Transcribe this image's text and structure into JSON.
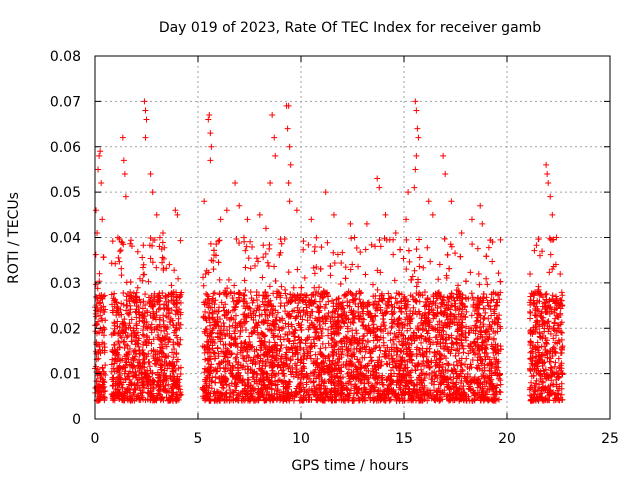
{
  "chart_data": {
    "type": "scatter",
    "title": "Day 019 of 2023, Rate Of TEC Index for receiver gamb",
    "xlabel": "GPS time / hours",
    "ylabel": "ROTI / TECUs",
    "xlim": [
      0,
      25
    ],
    "ylim": [
      0,
      0.08
    ],
    "grid": true,
    "marker": "+",
    "color": "#ff0000",
    "x_ticks": [
      "0",
      "5",
      "10",
      "15",
      "20",
      "25"
    ],
    "y_ticks": [
      "0",
      "0.01",
      "0.02",
      "0.03",
      "0.04",
      "0.05",
      "0.06",
      "0.07",
      "0.08"
    ],
    "coverage_hours": [
      [
        0,
        0.5
      ],
      [
        0.8,
        4.2
      ],
      [
        5.2,
        19.7
      ],
      [
        21.1,
        22.7
      ]
    ],
    "series": [
      {
        "name": "gamb",
        "points": [
          [
            0.05,
            0.046
          ],
          [
            0.1,
            0.041
          ],
          [
            0.15,
            0.055
          ],
          [
            0.2,
            0.058
          ],
          [
            0.25,
            0.059
          ],
          [
            0.3,
            0.052
          ],
          [
            0.35,
            0.044
          ],
          [
            0.22,
            0.032
          ],
          [
            0.4,
            0.027
          ],
          [
            1.35,
            0.062
          ],
          [
            1.4,
            0.057
          ],
          [
            1.5,
            0.049
          ],
          [
            1.45,
            0.054
          ],
          [
            2.4,
            0.07
          ],
          [
            2.45,
            0.068
          ],
          [
            2.5,
            0.066
          ],
          [
            2.45,
            0.062
          ],
          [
            2.7,
            0.054
          ],
          [
            2.8,
            0.05
          ],
          [
            3.0,
            0.045
          ],
          [
            3.3,
            0.041
          ],
          [
            3.9,
            0.046
          ],
          [
            4.0,
            0.045
          ],
          [
            5.5,
            0.066
          ],
          [
            5.55,
            0.067
          ],
          [
            5.6,
            0.063
          ],
          [
            5.65,
            0.06
          ],
          [
            5.6,
            0.057
          ],
          [
            5.3,
            0.048
          ],
          [
            6.1,
            0.044
          ],
          [
            6.4,
            0.046
          ],
          [
            6.8,
            0.052
          ],
          [
            7.0,
            0.047
          ],
          [
            7.4,
            0.044
          ],
          [
            8.0,
            0.045
          ],
          [
            8.3,
            0.042
          ],
          [
            8.5,
            0.052
          ],
          [
            8.6,
            0.067
          ],
          [
            8.7,
            0.062
          ],
          [
            8.75,
            0.058
          ],
          [
            9.3,
            0.069
          ],
          [
            9.4,
            0.069
          ],
          [
            9.35,
            0.064
          ],
          [
            9.45,
            0.06
          ],
          [
            9.5,
            0.056
          ],
          [
            9.4,
            0.052
          ],
          [
            9.45,
            0.048
          ],
          [
            9.8,
            0.046
          ],
          [
            10.5,
            0.044
          ],
          [
            11.2,
            0.05
          ],
          [
            11.6,
            0.045
          ],
          [
            12.4,
            0.043
          ],
          [
            12.6,
            0.04
          ],
          [
            13.2,
            0.043
          ],
          [
            13.7,
            0.053
          ],
          [
            13.8,
            0.051
          ],
          [
            14.1,
            0.045
          ],
          [
            14.6,
            0.041
          ],
          [
            15.1,
            0.044
          ],
          [
            15.2,
            0.05
          ],
          [
            15.55,
            0.07
          ],
          [
            15.6,
            0.068
          ],
          [
            15.65,
            0.064
          ],
          [
            15.7,
            0.062
          ],
          [
            15.6,
            0.058
          ],
          [
            15.55,
            0.055
          ],
          [
            15.5,
            0.051
          ],
          [
            16.2,
            0.048
          ],
          [
            16.4,
            0.045
          ],
          [
            16.9,
            0.058
          ],
          [
            17.0,
            0.054
          ],
          [
            17.3,
            0.048
          ],
          [
            17.8,
            0.041
          ],
          [
            18.3,
            0.044
          ],
          [
            18.7,
            0.047
          ],
          [
            18.8,
            0.043
          ],
          [
            19.3,
            0.039
          ],
          [
            21.6,
            0.036
          ],
          [
            21.9,
            0.056
          ],
          [
            21.95,
            0.054
          ],
          [
            22.0,
            0.052
          ],
          [
            22.1,
            0.049
          ],
          [
            22.2,
            0.045
          ],
          [
            22.4,
            0.04
          ]
        ]
      }
    ]
  }
}
